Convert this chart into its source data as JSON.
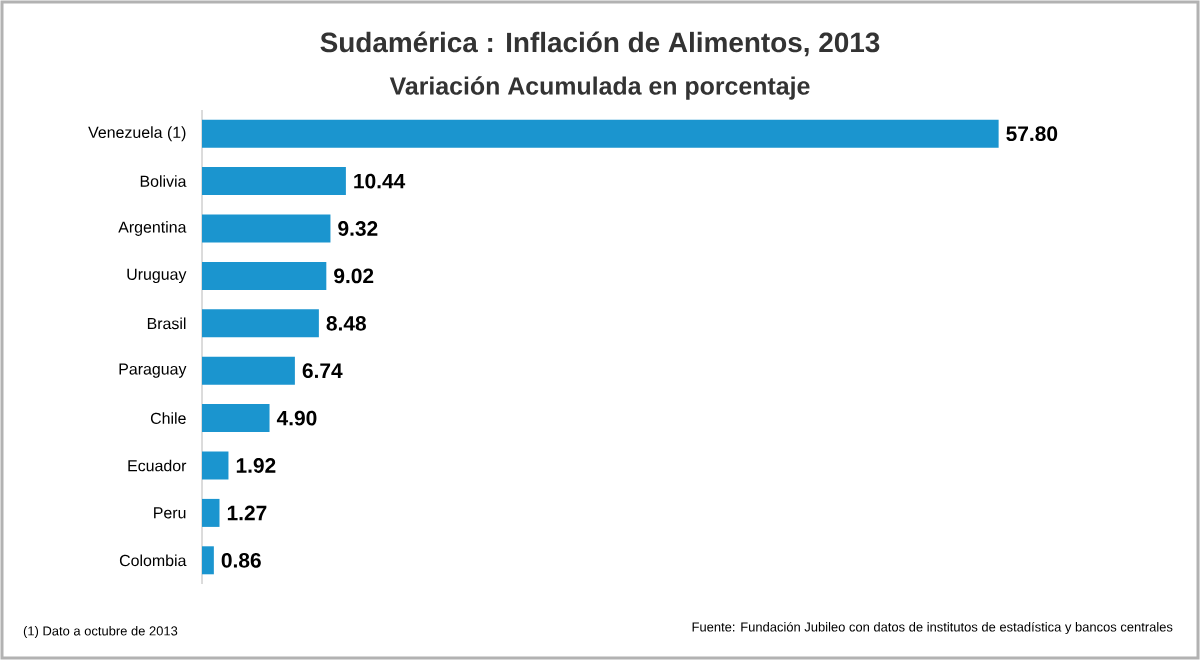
{
  "chart_data": {
    "type": "bar",
    "orientation": "horizontal",
    "title": "Sudamérica : Inflación de Alimentos, 2013",
    "subtitle": "Variación Acumulada en porcentaje",
    "categories": [
      "Venezuela (1)",
      "Bolivia",
      "Argentina",
      "Uruguay",
      "Brasil",
      "Paraguay",
      "Chile",
      "Ecuador",
      "Peru",
      "Colombia"
    ],
    "values": [
      57.8,
      10.44,
      9.32,
      9.02,
      8.48,
      6.74,
      4.9,
      1.92,
      1.27,
      0.86
    ],
    "value_labels": [
      "57.80",
      "10.44",
      "9.32",
      "9.02",
      "8.48",
      "6.74",
      "4.90",
      "1.92",
      "1.27",
      "0.86"
    ],
    "color": "#1b95cf",
    "annotations": [
      "(1) Dato a octubre de 2013",
      "Fuente: Fundación Jubileo  con datos de institutos de estadística y bancos centrales"
    ]
  }
}
